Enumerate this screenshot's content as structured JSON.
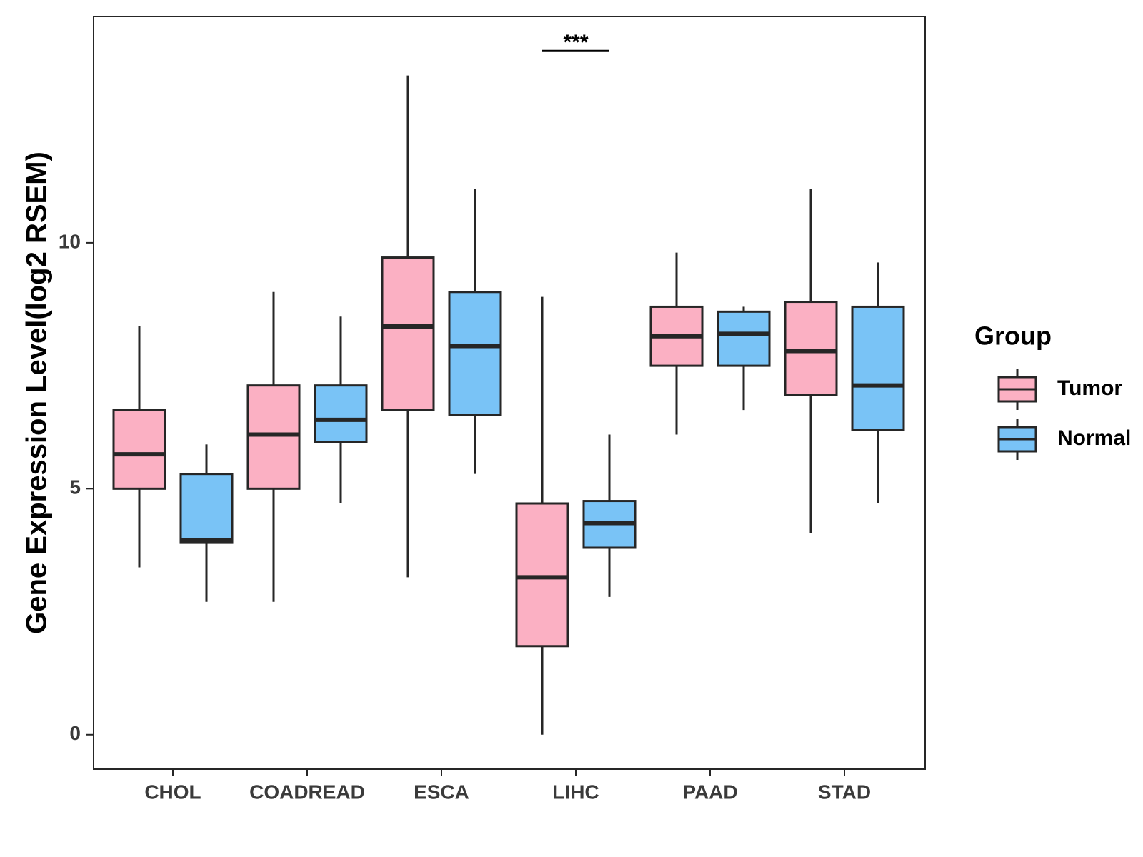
{
  "chart_data": {
    "type": "boxplot",
    "title": "",
    "xlabel": "",
    "ylabel": "Gene Expression Level(log2 RSEM)",
    "ylim": [
      -0.7,
      14.6
    ],
    "yticks": [
      0,
      5,
      10
    ],
    "grid": false,
    "legend": {
      "title": "Group",
      "position": "right",
      "entries": [
        "Tumor",
        "Normal"
      ]
    },
    "colors": {
      "Tumor": "#FBB0C3",
      "Normal": "#79C3F6",
      "outline": "#262626"
    },
    "categories": [
      "CHOL",
      "COADREAD",
      "ESCA",
      "LIHC",
      "PAAD",
      "STAD"
    ],
    "series": [
      {
        "name": "Tumor",
        "boxes": [
          {
            "min": 3.4,
            "q1": 5.0,
            "median": 5.7,
            "q3": 6.6,
            "max": 8.3
          },
          {
            "min": 2.7,
            "q1": 5.0,
            "median": 6.1,
            "q3": 7.1,
            "max": 9.0
          },
          {
            "min": 3.2,
            "q1": 6.6,
            "median": 8.3,
            "q3": 9.7,
            "max": 13.4
          },
          {
            "min": 0.0,
            "q1": 1.8,
            "median": 3.2,
            "q3": 4.7,
            "max": 8.9
          },
          {
            "min": 6.1,
            "q1": 7.5,
            "median": 8.1,
            "q3": 8.7,
            "max": 9.8
          },
          {
            "min": 4.1,
            "q1": 6.9,
            "median": 7.8,
            "q3": 8.8,
            "max": 11.1
          }
        ]
      },
      {
        "name": "Normal",
        "boxes": [
          {
            "min": 2.7,
            "q1": 3.9,
            "median": 3.95,
            "q3": 5.3,
            "max": 5.9
          },
          {
            "min": 4.7,
            "q1": 5.95,
            "median": 6.4,
            "q3": 7.1,
            "max": 8.5
          },
          {
            "min": 5.3,
            "q1": 6.5,
            "median": 7.9,
            "q3": 9.0,
            "max": 11.1
          },
          {
            "min": 2.8,
            "q1": 3.8,
            "median": 4.3,
            "q3": 4.75,
            "max": 6.1
          },
          {
            "min": 6.6,
            "q1": 7.5,
            "median": 8.15,
            "q3": 8.6,
            "max": 8.7
          },
          {
            "min": 4.7,
            "q1": 6.2,
            "median": 7.1,
            "q3": 8.7,
            "max": 9.6
          }
        ]
      }
    ],
    "annotations": [
      {
        "category": "LIHC",
        "label": "***",
        "y": 13.9
      }
    ]
  }
}
